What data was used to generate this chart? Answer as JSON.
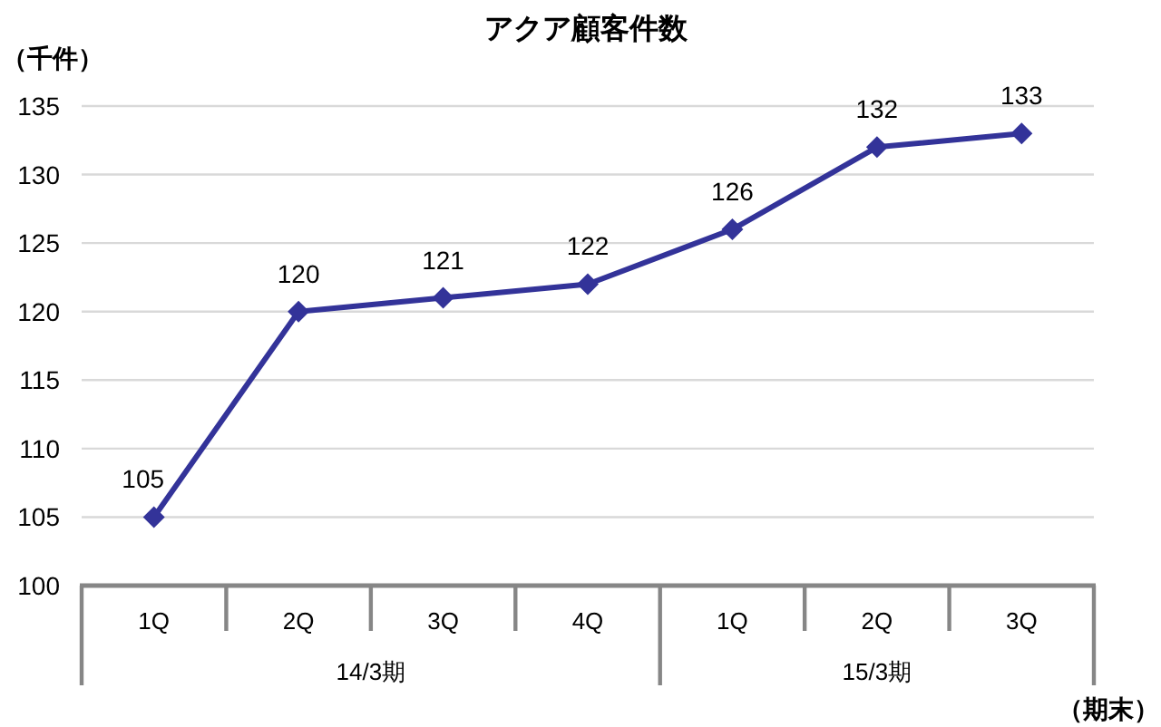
{
  "chart_data": {
    "type": "line",
    "title": "アクア顧客件数",
    "ylabel": "（千件）",
    "xlabel": "（期末）",
    "categories": [
      "1Q",
      "2Q",
      "3Q",
      "4Q",
      "1Q",
      "2Q",
      "3Q"
    ],
    "series": [
      {
        "color": "#333399",
        "values": [
          105,
          120,
          121,
          122,
          126,
          132,
          133
        ]
      }
    ],
    "ylim": [
      100,
      135
    ],
    "yticks": [
      100,
      105,
      110,
      115,
      120,
      125,
      130,
      135
    ],
    "grid": "y",
    "marker": "diamond",
    "line_style": "solid",
    "data_labels": true,
    "annotations": [
      "14/3期",
      "15/3期"
    ]
  }
}
